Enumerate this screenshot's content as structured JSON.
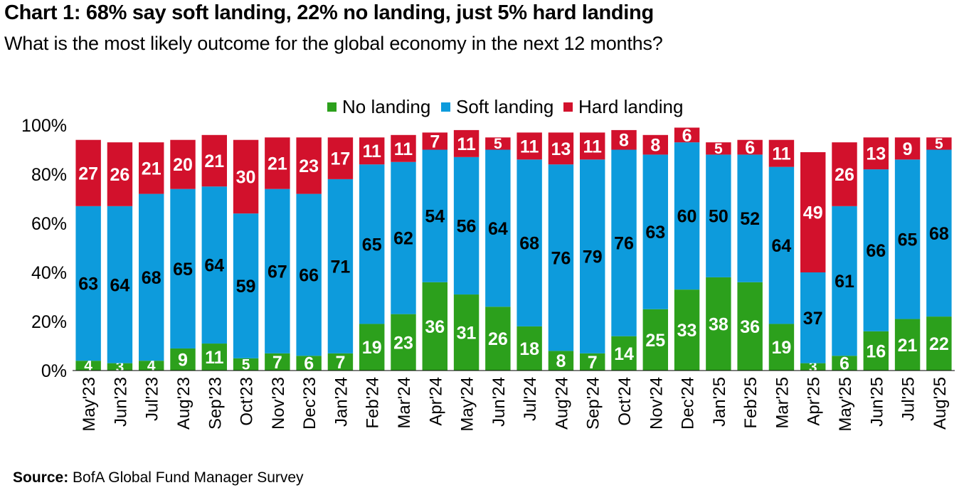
{
  "title": "Chart 1: 68% say soft landing, 22% no landing, just 5% hard landing",
  "subtitle": "What is the most likely outcome for the global economy in the next 12 months?",
  "source_label": "Source:",
  "source_text": "BofA Global Fund Manager Survey",
  "colors": {
    "no_landing": "#2ca01c",
    "soft_landing": "#0d9bdc",
    "hard_landing": "#d2112c",
    "grid": "#dddddd"
  },
  "chart_data": {
    "type": "bar",
    "stacked": true,
    "title": "Chart 1: 68% say soft landing, 22% no landing, just 5% hard landing",
    "subtitle": "What is the most likely outcome for the global economy in the next 12 months?",
    "xlabel": "",
    "ylabel": "",
    "ylim": [
      0,
      100
    ],
    "y_ticks": [
      "0%",
      "20%",
      "40%",
      "60%",
      "80%",
      "100%"
    ],
    "legend_position": "top-center",
    "grid": false,
    "categories": [
      "May'23",
      "Jun'23",
      "Jul'23",
      "Aug'23",
      "Sep'23",
      "Oct'23",
      "Nov'23",
      "Dec'23",
      "Jan'24",
      "Feb'24",
      "Mar'24",
      "Apr'24",
      "May'24",
      "Jun'24",
      "Jul'24",
      "Aug'24",
      "Sep'24",
      "Oct'24",
      "Nov'24",
      "Dec'24",
      "Jan'25",
      "Feb'25",
      "Mar'25",
      "Apr'25",
      "May'25",
      "Jun'25",
      "Jul'25",
      "Aug'25"
    ],
    "series": [
      {
        "name": "No landing",
        "color": "#2ca01c",
        "values": [
          4,
          3,
          4,
          9,
          11,
          5,
          7,
          6,
          7,
          19,
          23,
          36,
          31,
          26,
          18,
          8,
          7,
          14,
          25,
          33,
          38,
          36,
          19,
          3,
          6,
          16,
          21,
          22
        ]
      },
      {
        "name": "Soft landing",
        "color": "#0d9bdc",
        "values": [
          63,
          64,
          68,
          65,
          64,
          59,
          67,
          66,
          71,
          65,
          62,
          54,
          56,
          64,
          68,
          76,
          79,
          76,
          63,
          60,
          50,
          52,
          64,
          37,
          61,
          66,
          65,
          68
        ]
      },
      {
        "name": "Hard landing",
        "color": "#d2112c",
        "values": [
          27,
          26,
          21,
          20,
          21,
          30,
          21,
          23,
          17,
          11,
          11,
          7,
          11,
          5,
          11,
          13,
          11,
          8,
          8,
          6,
          5,
          6,
          11,
          49,
          26,
          13,
          9,
          5
        ]
      }
    ]
  }
}
